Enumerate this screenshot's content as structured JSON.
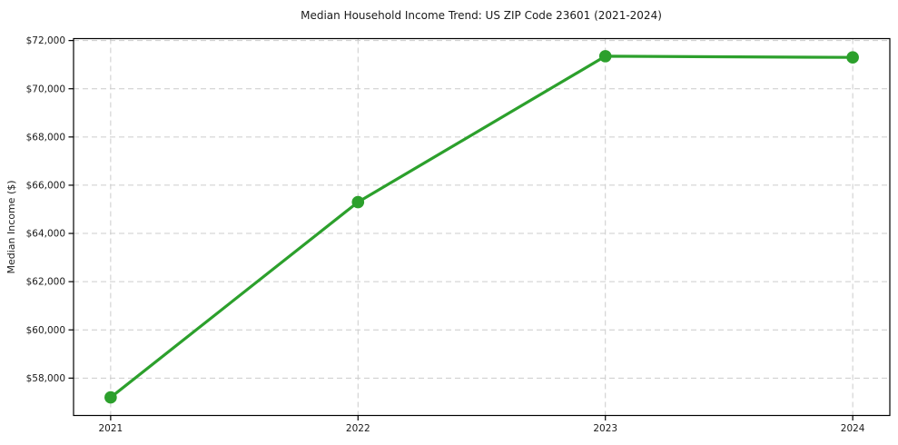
{
  "chart_data": {
    "type": "line",
    "title": "Median Household Income Trend: US ZIP Code 23601 (2021-2024)",
    "ylabel": "Median Income ($)",
    "x": [
      2021,
      2022,
      2023,
      2024
    ],
    "series": [
      {
        "values": [
          57200,
          65300,
          71350,
          71300
        ]
      }
    ],
    "xtick_labels": [
      "2021",
      "2022",
      "2023",
      "2024"
    ],
    "yticks": [
      58000,
      60000,
      62000,
      64000,
      66000,
      68000,
      70000,
      72000
    ],
    "ytick_labels": [
      "$58,000",
      "$60,000",
      "$62,000",
      "$64,000",
      "$66,000",
      "$68,000",
      "$70,000",
      "$72,000"
    ],
    "xlim": [
      2020.85,
      2024.15
    ],
    "ylim": [
      56450,
      72080
    ],
    "grid": true,
    "legend": false,
    "colors": {
      "line": "#2ca02c",
      "marker": "#2ca02c",
      "grid": "#cccccc",
      "axis": "#000000",
      "text": "#1a1a1a",
      "background": "#ffffff"
    }
  }
}
